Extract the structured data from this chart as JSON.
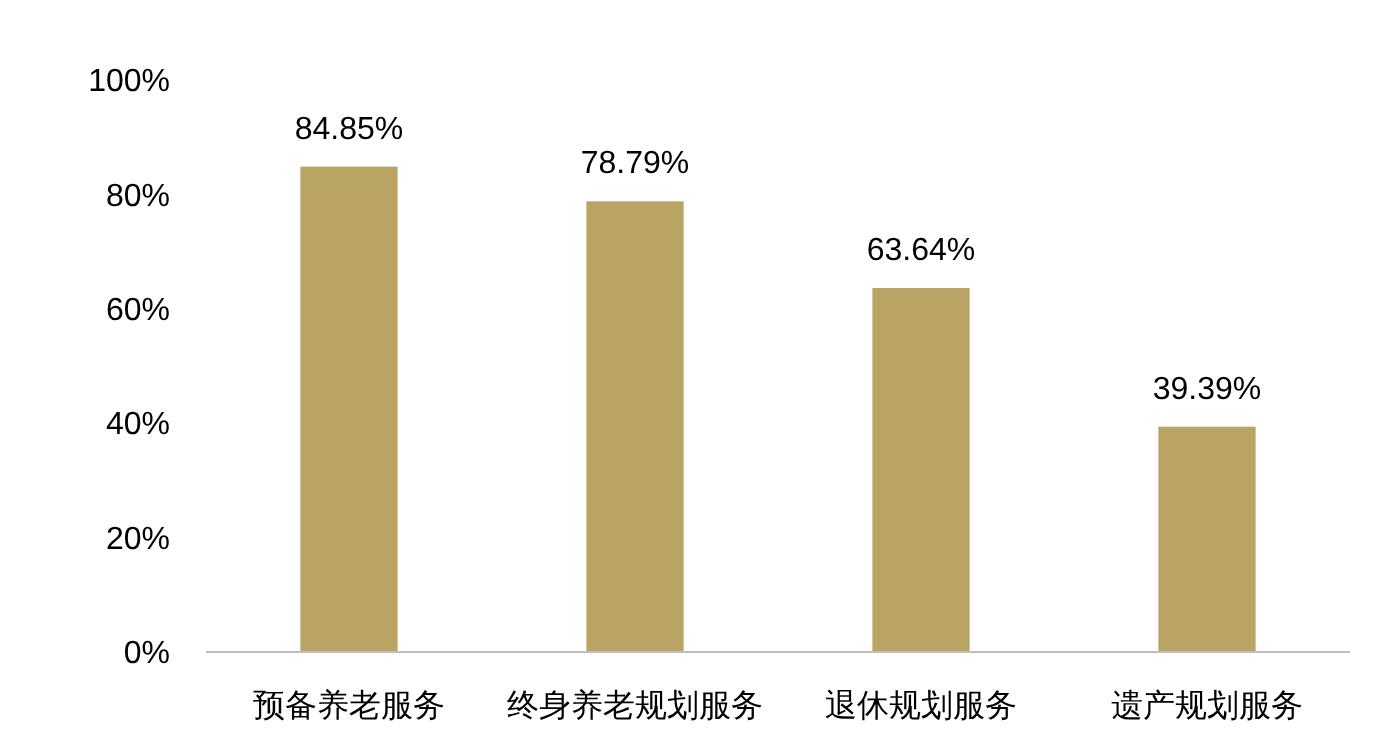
{
  "chart_data": {
    "type": "bar",
    "categories": [
      "预备养老服务",
      "终身养老规划服务",
      "退休规划服务",
      "遗产规划服务"
    ],
    "values": [
      84.85,
      78.79,
      63.64,
      39.39
    ],
    "value_labels": [
      "84.85%",
      "78.79%",
      "63.64%",
      "39.39%"
    ],
    "color": "#b9a463",
    "ylim": [
      0,
      100
    ],
    "yticks": [
      {
        "value": 0,
        "label": "0%"
      },
      {
        "value": 20,
        "label": "20%"
      },
      {
        "value": 40,
        "label": "40%"
      },
      {
        "value": 60,
        "label": "60%"
      },
      {
        "value": 80,
        "label": "80%"
      },
      {
        "value": 100,
        "label": "100%"
      }
    ],
    "grid": false
  }
}
